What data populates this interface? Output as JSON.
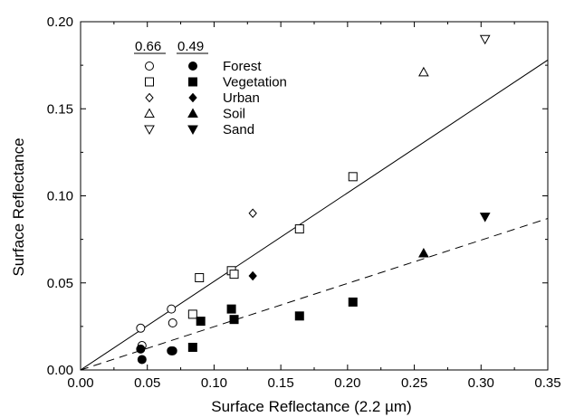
{
  "chart_data": {
    "type": "scatter",
    "title": "",
    "xlabel": "Surface Reflectance (2.2 µm)",
    "ylabel": "Surface Reflectance",
    "xlim": [
      0.0,
      0.35
    ],
    "ylim": [
      0.0,
      0.2
    ],
    "x_ticks": [
      "0.00",
      "0.05",
      "0.10",
      "0.15",
      "0.20",
      "0.25",
      "0.30",
      "0.35"
    ],
    "y_ticks": [
      "0.00",
      "0.05",
      "0.10",
      "0.15",
      "0.20"
    ],
    "grid": false,
    "legend": {
      "placement": "top-left",
      "column_headers": [
        "0.66",
        "0.49"
      ],
      "entries": [
        {
          "label": "Forest",
          "marker": "circle"
        },
        {
          "label": "Vegetation",
          "marker": "square"
        },
        {
          "label": "Urban",
          "marker": "diamond"
        },
        {
          "label": "Soil",
          "marker": "triangle-up"
        },
        {
          "label": "Sand",
          "marker": "triangle-down"
        }
      ]
    },
    "series": [
      {
        "name": "Forest",
        "band": "0.66",
        "marker": "circle",
        "filled": false,
        "points": [
          [
            0.045,
            0.024
          ],
          [
            0.046,
            0.014
          ],
          [
            0.068,
            0.035
          ],
          [
            0.069,
            0.027
          ]
        ]
      },
      {
        "name": "Forest",
        "band": "0.49",
        "marker": "circle",
        "filled": true,
        "points": [
          [
            0.045,
            0.012
          ],
          [
            0.046,
            0.006
          ],
          [
            0.068,
            0.011
          ],
          [
            0.069,
            0.011
          ]
        ]
      },
      {
        "name": "Vegetation",
        "band": "0.66",
        "marker": "square",
        "filled": false,
        "points": [
          [
            0.084,
            0.032
          ],
          [
            0.089,
            0.053
          ],
          [
            0.113,
            0.057
          ],
          [
            0.115,
            0.055
          ],
          [
            0.164,
            0.081
          ],
          [
            0.204,
            0.111
          ]
        ]
      },
      {
        "name": "Vegetation",
        "band": "0.49",
        "marker": "square",
        "filled": true,
        "points": [
          [
            0.084,
            0.013
          ],
          [
            0.09,
            0.028
          ],
          [
            0.113,
            0.035
          ],
          [
            0.115,
            0.029
          ],
          [
            0.164,
            0.031
          ],
          [
            0.204,
            0.039
          ]
        ]
      },
      {
        "name": "Urban",
        "band": "0.66",
        "marker": "diamond",
        "filled": false,
        "points": [
          [
            0.129,
            0.09
          ]
        ]
      },
      {
        "name": "Urban",
        "band": "0.49",
        "marker": "diamond",
        "filled": true,
        "points": [
          [
            0.129,
            0.054
          ]
        ]
      },
      {
        "name": "Soil",
        "band": "0.66",
        "marker": "triangle-up",
        "filled": false,
        "points": [
          [
            0.257,
            0.171
          ]
        ]
      },
      {
        "name": "Soil",
        "band": "0.49",
        "marker": "triangle-up",
        "filled": true,
        "points": [
          [
            0.257,
            0.067
          ]
        ]
      },
      {
        "name": "Sand",
        "band": "0.66",
        "marker": "triangle-down",
        "filled": false,
        "points": [
          [
            0.303,
            0.19
          ]
        ]
      },
      {
        "name": "Sand",
        "band": "0.49",
        "marker": "triangle-down",
        "filled": true,
        "points": [
          [
            0.303,
            0.088
          ]
        ]
      }
    ],
    "fit_lines": [
      {
        "band": "0.66",
        "style": "solid",
        "points": [
          [
            0.0,
            0.0
          ],
          [
            0.35,
            0.178
          ]
        ]
      },
      {
        "band": "0.49",
        "style": "dashed",
        "points": [
          [
            0.0,
            0.0
          ],
          [
            0.35,
            0.087
          ]
        ]
      }
    ]
  }
}
